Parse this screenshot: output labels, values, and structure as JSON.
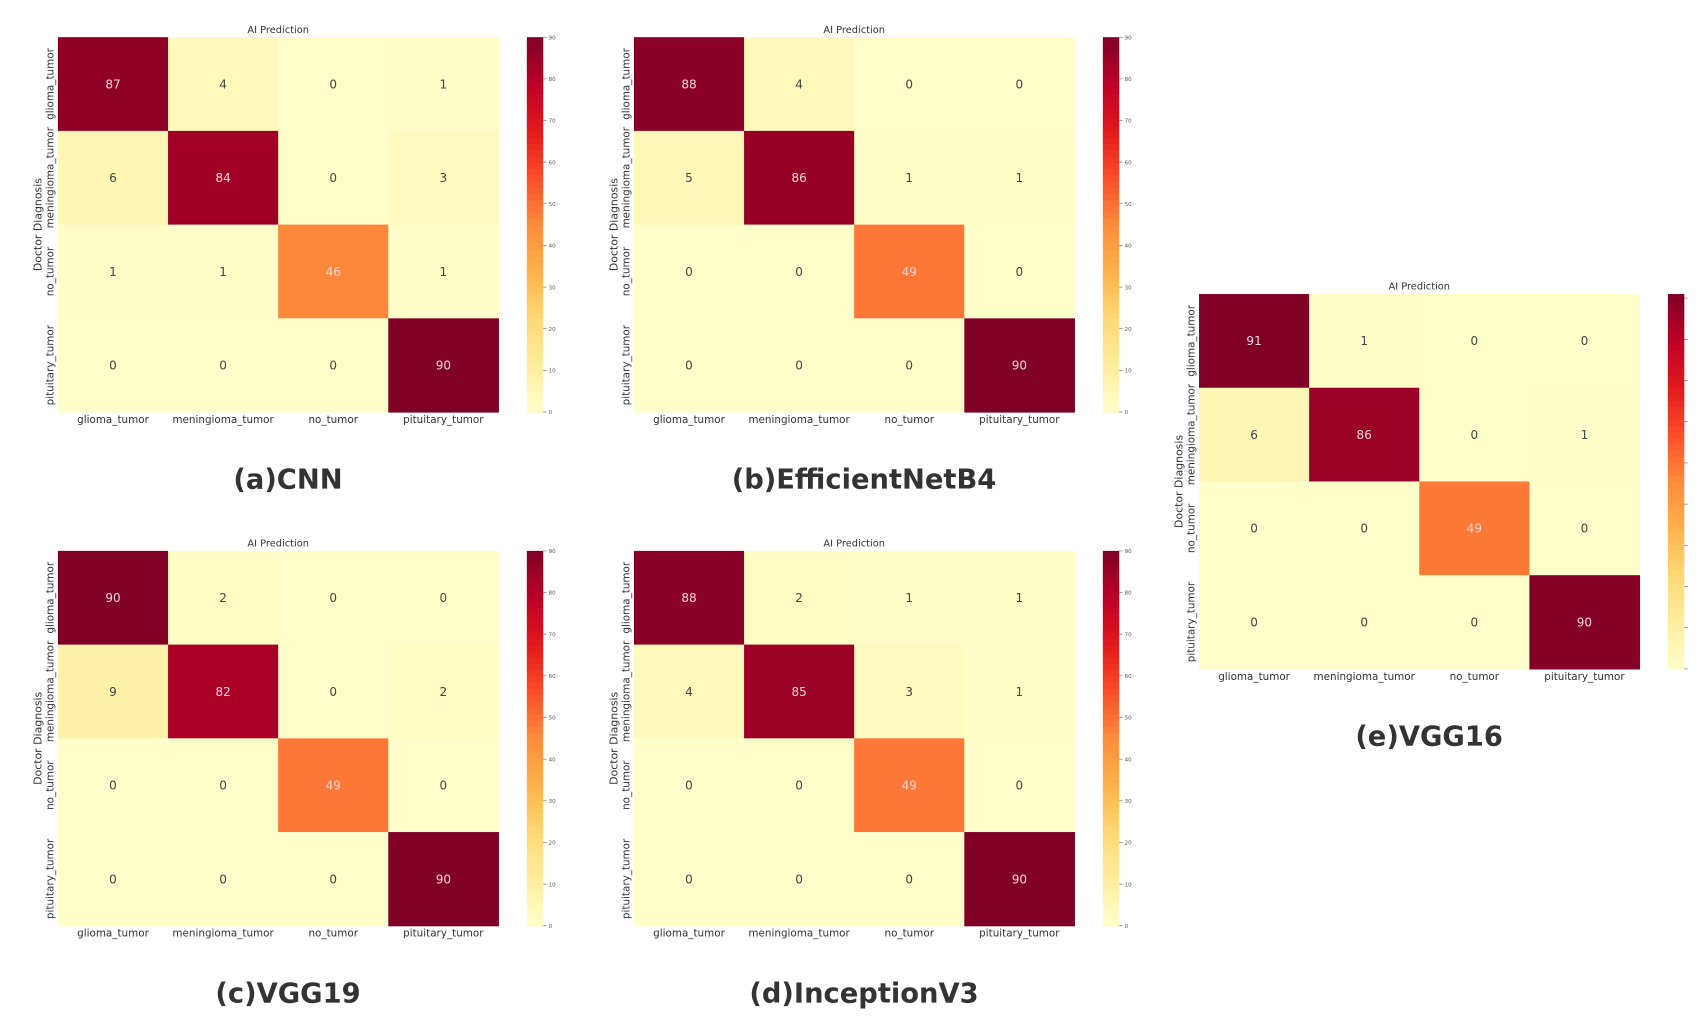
{
  "chart_data": [
    {
      "type": "heatmap",
      "caption": "(a)CNN",
      "title": "AI Prediction",
      "xlabel": "",
      "ylabel": "Doctor Diagnosis",
      "categories": [
        "glioma_tumor",
        "meningioma_tumor",
        "no_tumor",
        "pituitary_tumor"
      ],
      "values": [
        [
          87,
          4,
          0,
          1
        ],
        [
          6,
          84,
          0,
          3
        ],
        [
          1,
          1,
          46,
          1
        ],
        [
          0,
          0,
          0,
          90
        ]
      ],
      "colorbar": {
        "range": [
          0,
          90
        ],
        "ticks": [
          "0",
          "10",
          "20",
          "30",
          "40",
          "50",
          "60",
          "70",
          "80",
          "90"
        ]
      },
      "colormap": "YlOrRd"
    },
    {
      "type": "heatmap",
      "caption": "(b)EfficientNetB4",
      "title": "AI Prediction",
      "xlabel": "",
      "ylabel": "Doctor Diagnosis",
      "categories": [
        "glioma_tumor",
        "meningioma_tumor",
        "no_tumor",
        "pituitary_tumor"
      ],
      "values": [
        [
          88,
          4,
          0,
          0
        ],
        [
          5,
          86,
          1,
          1
        ],
        [
          0,
          0,
          49,
          0
        ],
        [
          0,
          0,
          0,
          90
        ]
      ],
      "colorbar": {
        "range": [
          0,
          90
        ],
        "ticks": [
          "0",
          "10",
          "20",
          "30",
          "40",
          "50",
          "60",
          "70",
          "80",
          "90"
        ]
      },
      "colormap": "YlOrRd"
    },
    {
      "type": "heatmap",
      "caption": "(c)VGG19",
      "title": "AI Prediction",
      "xlabel": "",
      "ylabel": "Doctor Diagnosis",
      "categories": [
        "glioma_tumor",
        "meningioma_tumor",
        "no_tumor",
        "pituitary_tumor"
      ],
      "values": [
        [
          90,
          2,
          0,
          0
        ],
        [
          9,
          82,
          0,
          2
        ],
        [
          0,
          0,
          49,
          0
        ],
        [
          0,
          0,
          0,
          90
        ]
      ],
      "colorbar": {
        "range": [
          0,
          90
        ],
        "ticks": [
          "0",
          "10",
          "20",
          "30",
          "40",
          "50",
          "60",
          "70",
          "80",
          "90"
        ]
      },
      "colormap": "YlOrRd"
    },
    {
      "type": "heatmap",
      "caption": "(d)InceptionV3",
      "title": "AI Prediction",
      "xlabel": "",
      "ylabel": "Doctor Diagnosis",
      "categories": [
        "glioma_tumor",
        "meningioma_tumor",
        "no_tumor",
        "pituitary_tumor"
      ],
      "values": [
        [
          88,
          2,
          1,
          1
        ],
        [
          4,
          85,
          3,
          1
        ],
        [
          0,
          0,
          49,
          0
        ],
        [
          0,
          0,
          0,
          90
        ]
      ],
      "colorbar": {
        "range": [
          0,
          90
        ],
        "ticks": [
          "0",
          "10",
          "20",
          "30",
          "40",
          "50",
          "60",
          "70",
          "80",
          "90"
        ]
      },
      "colormap": "YlOrRd"
    },
    {
      "type": "heatmap",
      "caption": "(e)VGG16",
      "title": "AI Prediction",
      "xlabel": "",
      "ylabel": "Doctor Diagnosis",
      "categories": [
        "glioma_tumor",
        "meningioma_tumor",
        "no_tumor",
        "pituitary_tumor"
      ],
      "values": [
        [
          91,
          1,
          0,
          0
        ],
        [
          6,
          86,
          0,
          1
        ],
        [
          0,
          0,
          49,
          0
        ],
        [
          0,
          0,
          0,
          90
        ]
      ],
      "colorbar": {
        "range": [
          0,
          91
        ],
        "ticks": []
      },
      "colormap": "YlOrRd"
    }
  ]
}
